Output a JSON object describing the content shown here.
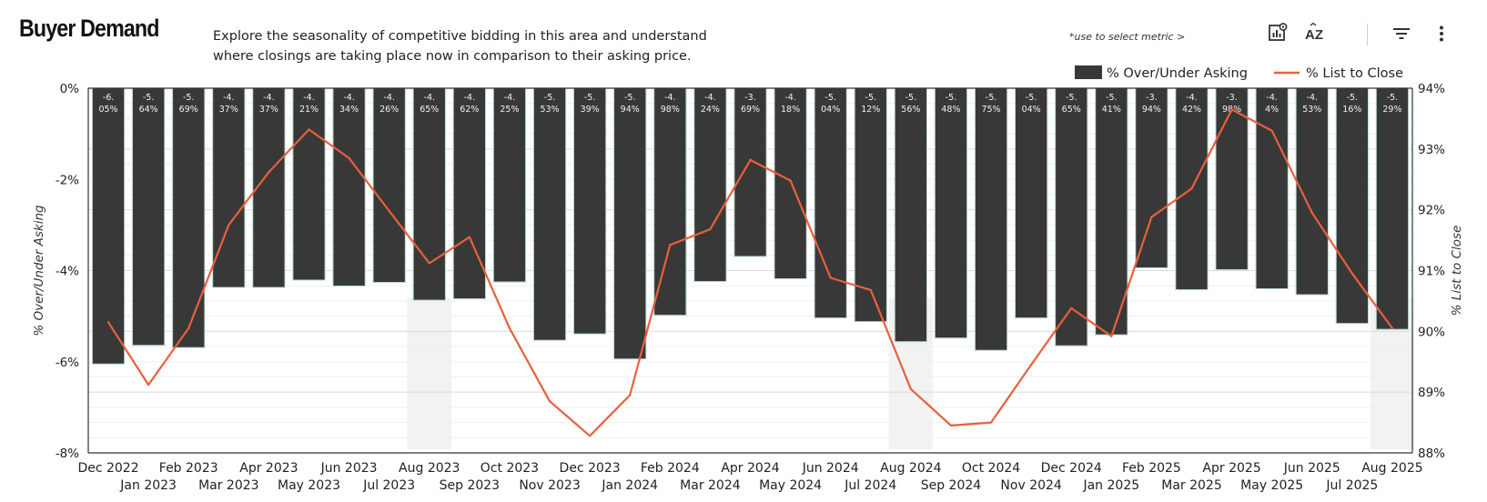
{
  "header": {
    "title": "Buyer Demand",
    "description_line1": "Explore the seasonality of competitive bidding in this area and understand",
    "description_line2": "where closings are taking place now in comparison to their asking price.",
    "hint": "*use to select metric >"
  },
  "toolbar": {
    "icons": [
      "chart-settings-icon",
      "sort-az-icon",
      "filter-icon",
      "more-vertical-icon"
    ],
    "sort_label": "AZ"
  },
  "colors": {
    "bar": "#383838",
    "bar_outline": "#b8d8d0",
    "line": "#e8603c",
    "highlight": "#f2f2f2",
    "grid": "#e6e6e6"
  },
  "chart_data": {
    "type": "bar",
    "title": "Buyer Demand",
    "categories": [
      "Dec 2022",
      "Jan 2023",
      "Feb 2023",
      "Mar 2023",
      "Apr 2023",
      "May 2023",
      "Jun 2023",
      "Jul 2023",
      "Aug 2023",
      "Sep 2023",
      "Oct 2023",
      "Nov 2023",
      "Dec 2023",
      "Jan 2024",
      "Feb 2024",
      "Mar 2024",
      "Apr 2024",
      "May 2024",
      "Jun 2024",
      "Jul 2024",
      "Aug 2024",
      "Sep 2024",
      "Oct 2024",
      "Nov 2024",
      "Dec 2024",
      "Jan 2025",
      "Feb 2025",
      "Mar 2025",
      "Apr 2025",
      "May 2025",
      "Jun 2025",
      "Jul 2025",
      "Aug 2025"
    ],
    "x_tick_labels": [
      "Dec 2022",
      "Jan 2023",
      "Feb 2023",
      "Mar 2023",
      "Apr 2023",
      "May 2023",
      "Jun 2023",
      "Jul 2023",
      "Aug 2023",
      "Sep 2023",
      "Oct 2023",
      "Nov 2023",
      "Dec 2023",
      "Jan 2024",
      "Feb 2024",
      "Mar 2024",
      "Apr 2024",
      "May 2024",
      "Jun 2024",
      "Jul 2024",
      "Aug 2024",
      "Sep 2024",
      "Oct 2024",
      "Nov 2024",
      "Dec 2024",
      "Jan 2025",
      "Feb 2025",
      "Mar 2025",
      "Apr 2025",
      "May 2025",
      "Jun 2025",
      "Jul 2025",
      "Aug 2025"
    ],
    "series": [
      {
        "name": "% Over/Under Asking",
        "type": "bar",
        "axis": "left",
        "values": [
          -6.05,
          -5.64,
          -5.69,
          -4.37,
          -4.37,
          -4.21,
          -4.34,
          -4.26,
          -4.65,
          -4.62,
          -4.25,
          -5.53,
          -5.39,
          -5.94,
          -4.98,
          -4.24,
          -3.69,
          -4.18,
          -5.04,
          -5.12,
          -5.56,
          -5.48,
          -5.75,
          -5.04,
          -5.65,
          -5.41,
          -3.94,
          -4.42,
          -3.98,
          -4.4,
          -4.53,
          -5.16,
          -5.29
        ],
        "labels_top": [
          "-6.",
          "-5.",
          "-5.",
          "-4.",
          "-4.",
          "-4.",
          "-4.",
          "-4.",
          "-4.",
          "-4.",
          "-4.",
          "-5.",
          "-5.",
          "-5.",
          "-4.",
          "-4.",
          "-3.",
          "-4.",
          "-5.",
          "-5.",
          "-5.",
          "-5.",
          "-5.",
          "-5.",
          "-5.",
          "-5.",
          "-3.",
          "-4.",
          "-3.",
          "-4.",
          "-4.",
          "-5.",
          "-5."
        ],
        "labels_bottom": [
          "05%",
          "64%",
          "69%",
          "37%",
          "37%",
          "21%",
          "34%",
          "26%",
          "65%",
          "62%",
          "25%",
          "53%",
          "39%",
          "94%",
          "98%",
          "24%",
          "69%",
          "18%",
          "04%",
          "12%",
          "56%",
          "48%",
          "75%",
          "04%",
          "65%",
          "41%",
          "94%",
          "42%",
          "98%",
          "4%",
          "53%",
          "16%",
          "29%"
        ]
      },
      {
        "name": "% List to Close",
        "type": "line",
        "axis": "right",
        "values": [
          90.15,
          89.12,
          90.05,
          91.75,
          92.62,
          93.32,
          92.85,
          91.98,
          91.12,
          91.55,
          90.05,
          88.85,
          88.28,
          88.95,
          91.42,
          91.68,
          92.82,
          92.48,
          90.88,
          90.68,
          89.05,
          88.45,
          88.5,
          89.45,
          90.38,
          89.92,
          91.88,
          92.35,
          93.65,
          93.3,
          91.95,
          90.95,
          90.05
        ]
      }
    ],
    "highlighted_categories": [
      "Aug 2023",
      "Aug 2024",
      "Aug 2025"
    ],
    "ylabel": "% Over/Under Asking",
    "ylim": [
      -8,
      0
    ],
    "yticks": [
      0,
      -2,
      -4,
      -6,
      -8
    ],
    "ytick_labels": [
      "0%",
      "-2%",
      "-4%",
      "-6%",
      "-8%"
    ],
    "y2label": "% List to Close",
    "y2lim": [
      88,
      94
    ],
    "y2ticks": [
      94,
      93,
      92,
      91,
      90,
      89,
      88
    ],
    "y2tick_labels": [
      "94%",
      "93%",
      "92%",
      "91%",
      "90%",
      "89%",
      "88%"
    ],
    "legend": [
      "% Over/Under Asking",
      "% List to Close"
    ],
    "legend_position": "top-right",
    "grid": true
  }
}
